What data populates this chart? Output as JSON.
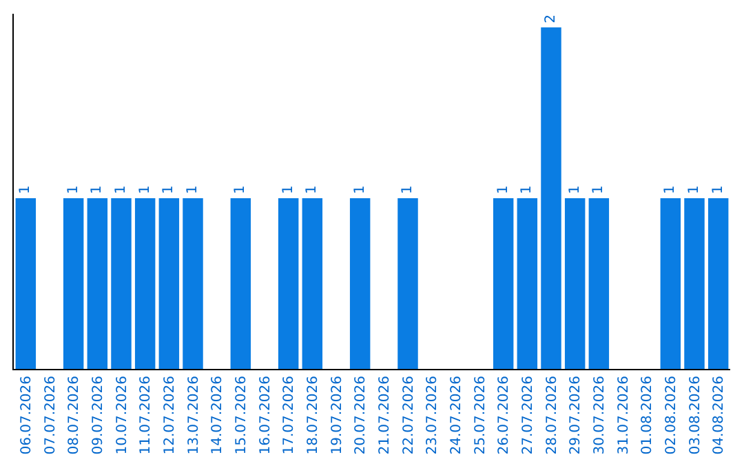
{
  "chart_data": {
    "type": "bar",
    "categories": [
      "06.07.2026",
      "07.07.2026",
      "08.07.2026",
      "09.07.2026",
      "10.07.2026",
      "11.07.2026",
      "12.07.2026",
      "13.07.2026",
      "14.07.2026",
      "15.07.2026",
      "16.07.2026",
      "17.07.2026",
      "18.07.2026",
      "19.07.2026",
      "20.07.2026",
      "21.07.2026",
      "22.07.2026",
      "23.07.2026",
      "24.07.2026",
      "25.07.2026",
      "26.07.2026",
      "27.07.2026",
      "28.07.2026",
      "29.07.2026",
      "30.07.2026",
      "31.07.2026",
      "01.08.2026",
      "02.08.2026",
      "03.08.2026",
      "04.08.2026"
    ],
    "values": [
      1,
      0,
      1,
      1,
      1,
      1,
      1,
      1,
      0,
      1,
      0,
      1,
      1,
      0,
      1,
      0,
      1,
      0,
      0,
      0,
      1,
      1,
      2,
      1,
      1,
      0,
      0,
      1,
      1,
      1
    ],
    "value_labels": [
      "1",
      null,
      "1",
      "1",
      "1",
      "1",
      "1",
      "1",
      null,
      "1",
      null,
      "1",
      "1",
      null,
      "1",
      null,
      "1",
      null,
      null,
      null,
      "1",
      "1",
      "2",
      "1",
      "1",
      null,
      null,
      "1",
      "1",
      "1"
    ],
    "color": "#0a7de3",
    "ylim": [
      0,
      2.08
    ],
    "tick_labels": "x"
  }
}
